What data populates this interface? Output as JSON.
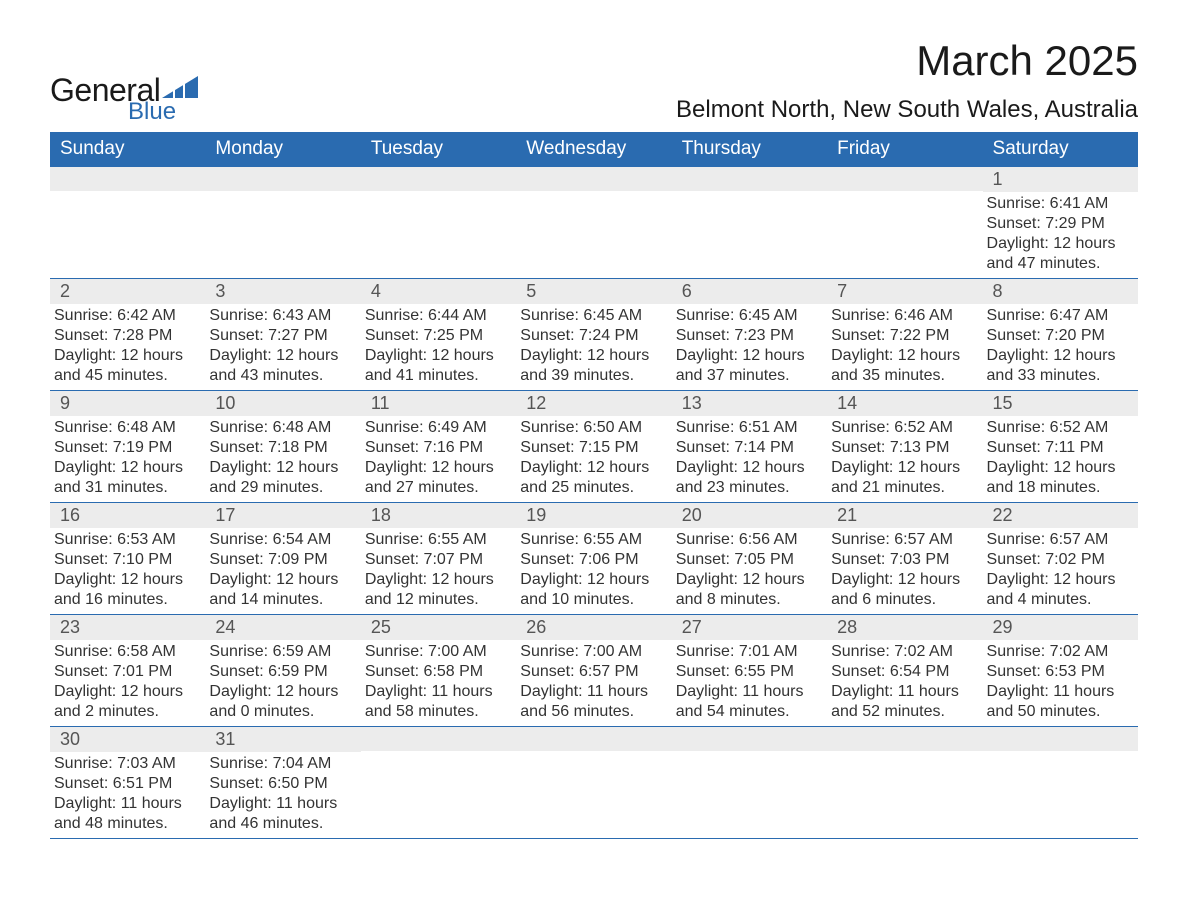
{
  "logo": {
    "text_general": "General",
    "text_blue": "Blue",
    "icon_color": "#2a6bb0"
  },
  "title": "March 2025",
  "location": "Belmont North, New South Wales, Australia",
  "colors": {
    "header_bg": "#2a6bb0",
    "header_text": "#ffffff",
    "daynum_bg": "#ececec",
    "daynum_text": "#555555",
    "body_text": "#333333",
    "border": "#2a6bb0",
    "page_bg": "#ffffff"
  },
  "fonts": {
    "family": "Arial",
    "title_size_pt": 32,
    "location_size_pt": 18,
    "header_size_pt": 14,
    "daynum_size_pt": 14,
    "body_size_pt": 12
  },
  "weekdays": [
    "Sunday",
    "Monday",
    "Tuesday",
    "Wednesday",
    "Thursday",
    "Friday",
    "Saturday"
  ],
  "weeks": [
    [
      {
        "num": "",
        "sunrise": "",
        "sunset": "",
        "daylight": ""
      },
      {
        "num": "",
        "sunrise": "",
        "sunset": "",
        "daylight": ""
      },
      {
        "num": "",
        "sunrise": "",
        "sunset": "",
        "daylight": ""
      },
      {
        "num": "",
        "sunrise": "",
        "sunset": "",
        "daylight": ""
      },
      {
        "num": "",
        "sunrise": "",
        "sunset": "",
        "daylight": ""
      },
      {
        "num": "",
        "sunrise": "",
        "sunset": "",
        "daylight": ""
      },
      {
        "num": "1",
        "sunrise": "Sunrise: 6:41 AM",
        "sunset": "Sunset: 7:29 PM",
        "daylight": "Daylight: 12 hours and 47 minutes."
      }
    ],
    [
      {
        "num": "2",
        "sunrise": "Sunrise: 6:42 AM",
        "sunset": "Sunset: 7:28 PM",
        "daylight": "Daylight: 12 hours and 45 minutes."
      },
      {
        "num": "3",
        "sunrise": "Sunrise: 6:43 AM",
        "sunset": "Sunset: 7:27 PM",
        "daylight": "Daylight: 12 hours and 43 minutes."
      },
      {
        "num": "4",
        "sunrise": "Sunrise: 6:44 AM",
        "sunset": "Sunset: 7:25 PM",
        "daylight": "Daylight: 12 hours and 41 minutes."
      },
      {
        "num": "5",
        "sunrise": "Sunrise: 6:45 AM",
        "sunset": "Sunset: 7:24 PM",
        "daylight": "Daylight: 12 hours and 39 minutes."
      },
      {
        "num": "6",
        "sunrise": "Sunrise: 6:45 AM",
        "sunset": "Sunset: 7:23 PM",
        "daylight": "Daylight: 12 hours and 37 minutes."
      },
      {
        "num": "7",
        "sunrise": "Sunrise: 6:46 AM",
        "sunset": "Sunset: 7:22 PM",
        "daylight": "Daylight: 12 hours and 35 minutes."
      },
      {
        "num": "8",
        "sunrise": "Sunrise: 6:47 AM",
        "sunset": "Sunset: 7:20 PM",
        "daylight": "Daylight: 12 hours and 33 minutes."
      }
    ],
    [
      {
        "num": "9",
        "sunrise": "Sunrise: 6:48 AM",
        "sunset": "Sunset: 7:19 PM",
        "daylight": "Daylight: 12 hours and 31 minutes."
      },
      {
        "num": "10",
        "sunrise": "Sunrise: 6:48 AM",
        "sunset": "Sunset: 7:18 PM",
        "daylight": "Daylight: 12 hours and 29 minutes."
      },
      {
        "num": "11",
        "sunrise": "Sunrise: 6:49 AM",
        "sunset": "Sunset: 7:16 PM",
        "daylight": "Daylight: 12 hours and 27 minutes."
      },
      {
        "num": "12",
        "sunrise": "Sunrise: 6:50 AM",
        "sunset": "Sunset: 7:15 PM",
        "daylight": "Daylight: 12 hours and 25 minutes."
      },
      {
        "num": "13",
        "sunrise": "Sunrise: 6:51 AM",
        "sunset": "Sunset: 7:14 PM",
        "daylight": "Daylight: 12 hours and 23 minutes."
      },
      {
        "num": "14",
        "sunrise": "Sunrise: 6:52 AM",
        "sunset": "Sunset: 7:13 PM",
        "daylight": "Daylight: 12 hours and 21 minutes."
      },
      {
        "num": "15",
        "sunrise": "Sunrise: 6:52 AM",
        "sunset": "Sunset: 7:11 PM",
        "daylight": "Daylight: 12 hours and 18 minutes."
      }
    ],
    [
      {
        "num": "16",
        "sunrise": "Sunrise: 6:53 AM",
        "sunset": "Sunset: 7:10 PM",
        "daylight": "Daylight: 12 hours and 16 minutes."
      },
      {
        "num": "17",
        "sunrise": "Sunrise: 6:54 AM",
        "sunset": "Sunset: 7:09 PM",
        "daylight": "Daylight: 12 hours and 14 minutes."
      },
      {
        "num": "18",
        "sunrise": "Sunrise: 6:55 AM",
        "sunset": "Sunset: 7:07 PM",
        "daylight": "Daylight: 12 hours and 12 minutes."
      },
      {
        "num": "19",
        "sunrise": "Sunrise: 6:55 AM",
        "sunset": "Sunset: 7:06 PM",
        "daylight": "Daylight: 12 hours and 10 minutes."
      },
      {
        "num": "20",
        "sunrise": "Sunrise: 6:56 AM",
        "sunset": "Sunset: 7:05 PM",
        "daylight": "Daylight: 12 hours and 8 minutes."
      },
      {
        "num": "21",
        "sunrise": "Sunrise: 6:57 AM",
        "sunset": "Sunset: 7:03 PM",
        "daylight": "Daylight: 12 hours and 6 minutes."
      },
      {
        "num": "22",
        "sunrise": "Sunrise: 6:57 AM",
        "sunset": "Sunset: 7:02 PM",
        "daylight": "Daylight: 12 hours and 4 minutes."
      }
    ],
    [
      {
        "num": "23",
        "sunrise": "Sunrise: 6:58 AM",
        "sunset": "Sunset: 7:01 PM",
        "daylight": "Daylight: 12 hours and 2 minutes."
      },
      {
        "num": "24",
        "sunrise": "Sunrise: 6:59 AM",
        "sunset": "Sunset: 6:59 PM",
        "daylight": "Daylight: 12 hours and 0 minutes."
      },
      {
        "num": "25",
        "sunrise": "Sunrise: 7:00 AM",
        "sunset": "Sunset: 6:58 PM",
        "daylight": "Daylight: 11 hours and 58 minutes."
      },
      {
        "num": "26",
        "sunrise": "Sunrise: 7:00 AM",
        "sunset": "Sunset: 6:57 PM",
        "daylight": "Daylight: 11 hours and 56 minutes."
      },
      {
        "num": "27",
        "sunrise": "Sunrise: 7:01 AM",
        "sunset": "Sunset: 6:55 PM",
        "daylight": "Daylight: 11 hours and 54 minutes."
      },
      {
        "num": "28",
        "sunrise": "Sunrise: 7:02 AM",
        "sunset": "Sunset: 6:54 PM",
        "daylight": "Daylight: 11 hours and 52 minutes."
      },
      {
        "num": "29",
        "sunrise": "Sunrise: 7:02 AM",
        "sunset": "Sunset: 6:53 PM",
        "daylight": "Daylight: 11 hours and 50 minutes."
      }
    ],
    [
      {
        "num": "30",
        "sunrise": "Sunrise: 7:03 AM",
        "sunset": "Sunset: 6:51 PM",
        "daylight": "Daylight: 11 hours and 48 minutes."
      },
      {
        "num": "31",
        "sunrise": "Sunrise: 7:04 AM",
        "sunset": "Sunset: 6:50 PM",
        "daylight": "Daylight: 11 hours and 46 minutes."
      },
      {
        "num": "",
        "sunrise": "",
        "sunset": "",
        "daylight": ""
      },
      {
        "num": "",
        "sunrise": "",
        "sunset": "",
        "daylight": ""
      },
      {
        "num": "",
        "sunrise": "",
        "sunset": "",
        "daylight": ""
      },
      {
        "num": "",
        "sunrise": "",
        "sunset": "",
        "daylight": ""
      },
      {
        "num": "",
        "sunrise": "",
        "sunset": "",
        "daylight": ""
      }
    ]
  ]
}
